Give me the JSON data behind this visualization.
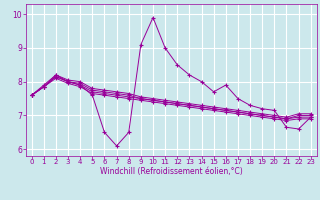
{
  "title": "",
  "xlabel": "Windchill (Refroidissement éolien,°C)",
  "bg_color": "#cce8ec",
  "grid_color": "#ffffff",
  "line_color": "#990099",
  "xlim": [
    -0.5,
    23.5
  ],
  "ylim": [
    5.8,
    10.3
  ],
  "yticks": [
    6,
    7,
    8,
    9,
    10
  ],
  "xticks": [
    0,
    1,
    2,
    3,
    4,
    5,
    6,
    7,
    8,
    9,
    10,
    11,
    12,
    13,
    14,
    15,
    16,
    17,
    18,
    19,
    20,
    21,
    22,
    23
  ],
  "series": [
    [
      7.6,
      7.9,
      8.2,
      8.0,
      7.9,
      7.6,
      6.5,
      6.1,
      6.5,
      9.1,
      9.9,
      9.0,
      8.5,
      8.2,
      8.0,
      7.7,
      7.9,
      7.5,
      7.3,
      7.2,
      7.15,
      6.65,
      6.6,
      6.95
    ],
    [
      7.6,
      7.85,
      8.1,
      7.95,
      7.85,
      7.65,
      7.6,
      7.55,
      7.5,
      7.45,
      7.4,
      7.35,
      7.3,
      7.25,
      7.2,
      7.15,
      7.1,
      7.05,
      7.0,
      6.95,
      6.9,
      6.85,
      6.9,
      6.9
    ],
    [
      7.6,
      7.85,
      8.15,
      8.0,
      7.9,
      7.7,
      7.65,
      7.6,
      7.55,
      7.5,
      7.45,
      7.4,
      7.35,
      7.3,
      7.25,
      7.2,
      7.15,
      7.1,
      7.05,
      7.0,
      6.95,
      6.9,
      6.95,
      6.95
    ],
    [
      7.6,
      7.85,
      8.15,
      8.0,
      7.95,
      7.75,
      7.7,
      7.65,
      7.6,
      7.5,
      7.45,
      7.4,
      7.35,
      7.3,
      7.25,
      7.2,
      7.15,
      7.1,
      7.05,
      7.0,
      6.95,
      6.9,
      7.0,
      7.0
    ],
    [
      7.6,
      7.85,
      8.2,
      8.05,
      8.0,
      7.8,
      7.75,
      7.7,
      7.65,
      7.55,
      7.5,
      7.45,
      7.4,
      7.35,
      7.3,
      7.25,
      7.2,
      7.15,
      7.1,
      7.05,
      7.0,
      6.95,
      7.05,
      7.05
    ]
  ]
}
